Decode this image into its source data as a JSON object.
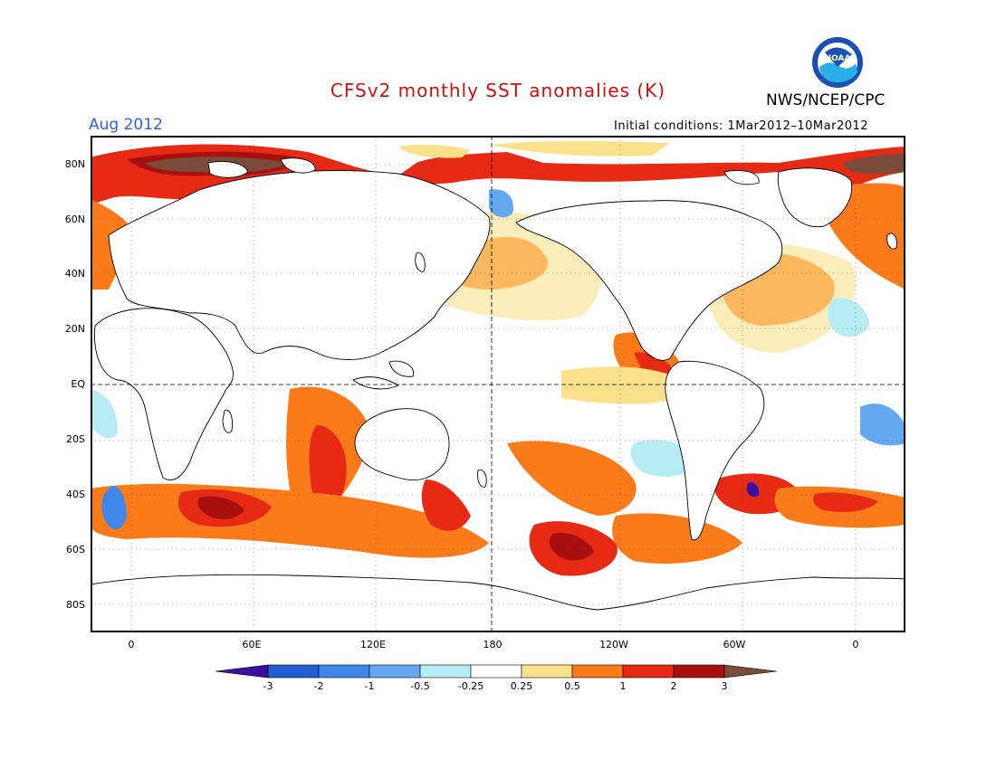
{
  "header": {
    "title": "CFSv2 monthly SST anomalies (K)",
    "organization": "NWS/NCEP/CPC",
    "valid_month": "Aug 2012",
    "initial_conditions": "Initial conditions: 1Mar2012–10Mar2012",
    "logo_text": "NOAA"
  },
  "map": {
    "projection": "cylindrical equidistant",
    "lon_labels": [
      "0",
      "60E",
      "120E",
      "180",
      "120W",
      "60W",
      "0"
    ],
    "lat_labels": [
      "80N",
      "60N",
      "40N",
      "20N",
      "EQ",
      "20S",
      "40S",
      "60S",
      "80S"
    ],
    "central_meridian": "180",
    "grid": "dotted 30-degree longitude / 20-degree latitude"
  },
  "colorbar": {
    "labels": [
      "-3",
      "-2",
      "-1",
      "-0.5",
      "-0.25",
      "0.25",
      "0.5",
      "1",
      "2",
      "3"
    ],
    "colors": [
      "#3b0fa0",
      "#1f5fd0",
      "#3f87e8",
      "#63a9f0",
      "#b8ecf5",
      "#ffffff",
      "#fbe18c",
      "#fb7a1a",
      "#e62a14",
      "#a81010",
      "#7a4b3a"
    ]
  },
  "anomalies": [
    {
      "region": "Arctic (Kara/Barents Sea)",
      "level": "3+"
    },
    {
      "region": "Northeast Pacific",
      "level": "1"
    },
    {
      "region": "Eastern Tropical Pacific (Nino 1+2)",
      "level": "1"
    },
    {
      "region": "North Atlantic (mid-latitude)",
      "level": "1"
    },
    {
      "region": "Southern Indian Ocean (40S)",
      "level": "2"
    },
    {
      "region": "South Pacific (55S, 150W)",
      "level": "2"
    },
    {
      "region": "Southwest Atlantic (Brazil-Malvinas)",
      "level": "-3"
    }
  ]
}
